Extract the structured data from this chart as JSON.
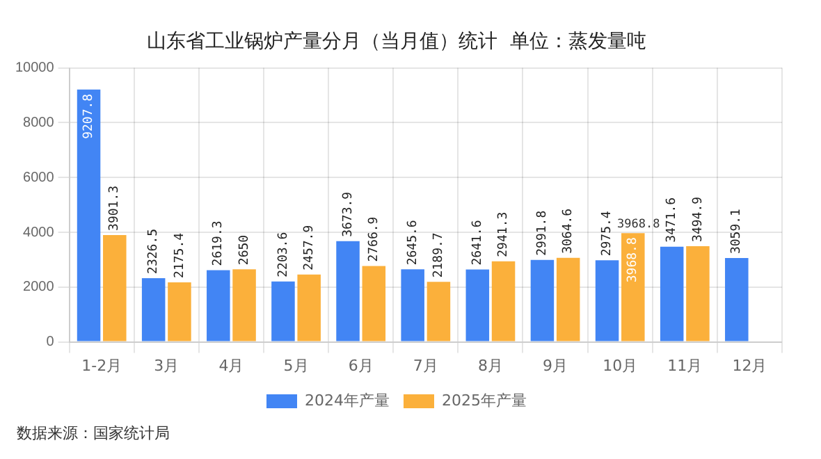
{
  "chart_data": {
    "type": "bar",
    "title": "山东省工业锅炉产量分月（当月值）统计  单位：蒸发量吨",
    "categories": [
      "1-2月",
      "3月",
      "4月",
      "5月",
      "6月",
      "7月",
      "8月",
      "9月",
      "10月",
      "11月",
      "12月"
    ],
    "series": [
      {
        "name": "2024年产量",
        "color": "#4285f4",
        "values": [
          9207.8,
          2326.5,
          2619.3,
          2203.6,
          3673.9,
          2645.6,
          2641.6,
          2991.8,
          2975.4,
          3471.6,
          3059.1
        ]
      },
      {
        "name": "2025年产量",
        "color": "#fbb03b",
        "values": [
          3901.3,
          2175.4,
          2650,
          2457.9,
          2766.9,
          2189.7,
          2941.3,
          3064.6,
          3968.8,
          3494.9,
          null
        ]
      }
    ],
    "ylim": [
      0,
      10000
    ],
    "yticks": [
      0,
      2000,
      4000,
      6000,
      8000,
      10000
    ],
    "grid": true,
    "legend": "bottom",
    "data_labels": true,
    "annotations": [
      {
        "text": "3968.8",
        "x": "10月",
        "y": 3968.8
      },
      "数据来源：国家统计局"
    ]
  }
}
